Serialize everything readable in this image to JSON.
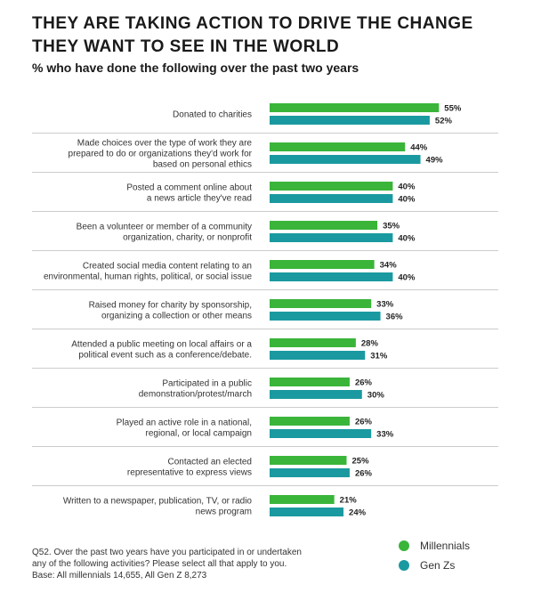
{
  "title_lines": [
    "THEY ARE TAKING ACTION TO DRIVE THE CHANGE",
    "THEY WANT TO SEE IN THE WORLD"
  ],
  "subtitle": "% who have done the following over the past two years",
  "colors": {
    "millennials": "#3ab53a",
    "genz": "#1a9aa0",
    "divider": "#cccccc"
  },
  "chart_data": {
    "type": "bar",
    "orientation": "horizontal",
    "xlim": [
      0,
      100
    ],
    "grid": false,
    "legend_position": "bottom-right",
    "categories": [
      [
        "Donated to charities"
      ],
      [
        "Made choices over the type of work they are",
        "prepared to do or organizations they'd work for",
        "based on personal ethics"
      ],
      [
        "Posted a comment online about",
        "a news article they've read"
      ],
      [
        "Been a volunteer or member of a community",
        "organization, charity, or nonprofit"
      ],
      [
        "Created social media content relating to an",
        "environmental, human rights, political, or social issue"
      ],
      [
        "Raised money for charity by sponsorship,",
        "organizing a collection or other means"
      ],
      [
        "Attended a public meeting on local affairs or a",
        "political event such as a conference/debate."
      ],
      [
        "Participated in a public",
        "demonstration/protest/march"
      ],
      [
        "Played an active role in a national,",
        "regional, or local campaign"
      ],
      [
        "Contacted an elected",
        "representative to express views"
      ],
      [
        "Written to a newspaper, publication, TV, or radio",
        "news program"
      ]
    ],
    "series": [
      {
        "name": "Millennials",
        "values": [
          55,
          44,
          40,
          35,
          34,
          33,
          28,
          26,
          26,
          25,
          21
        ]
      },
      {
        "name": "Gen Zs",
        "values": [
          52,
          49,
          40,
          40,
          40,
          36,
          31,
          30,
          33,
          26,
          24
        ]
      }
    ],
    "value_suffix": "%"
  },
  "footnote_lines": [
    "Q52. Over the past two years have you participated in or undertaken",
    "any of the following activities? Please select all that apply to you.",
    "Base: All millennials 14,655, All Gen Z 8,273"
  ]
}
